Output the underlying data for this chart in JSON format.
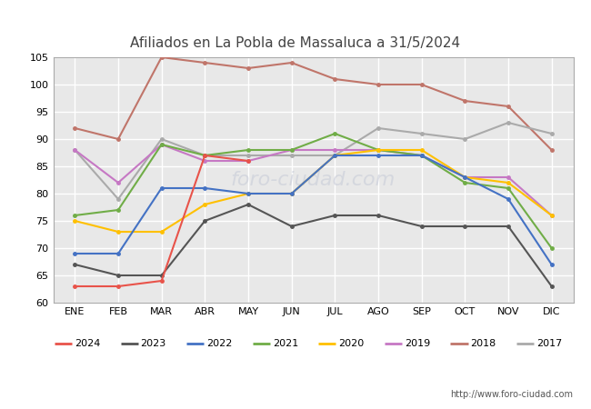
{
  "title": "Afiliados en La Pobla de Massaluca a 31/5/2024",
  "months": [
    "ENE",
    "FEB",
    "MAR",
    "ABR",
    "MAY",
    "JUN",
    "JUL",
    "AGO",
    "SEP",
    "OCT",
    "NOV",
    "DIC"
  ],
  "series": {
    "2024": {
      "color": "#e8534a",
      "data": [
        63,
        63,
        64,
        87,
        86,
        null,
        null,
        null,
        null,
        null,
        null,
        null
      ]
    },
    "2023": {
      "color": "#555555",
      "data": [
        67,
        65,
        65,
        75,
        78,
        74,
        76,
        76,
        74,
        74,
        74,
        63
      ]
    },
    "2022": {
      "color": "#4472c4",
      "data": [
        69,
        69,
        81,
        81,
        80,
        80,
        87,
        87,
        87,
        83,
        79,
        67
      ]
    },
    "2021": {
      "color": "#70ad47",
      "data": [
        76,
        77,
        89,
        87,
        88,
        88,
        91,
        88,
        87,
        82,
        81,
        70
      ]
    },
    "2020": {
      "color": "#ffc000",
      "data": [
        75,
        73,
        73,
        78,
        80,
        80,
        87,
        88,
        88,
        83,
        82,
        76
      ]
    },
    "2019": {
      "color": "#c678c4",
      "data": [
        88,
        82,
        89,
        86,
        86,
        88,
        88,
        88,
        87,
        83,
        83,
        76
      ]
    },
    "2018": {
      "color": "#c0756a",
      "data": [
        92,
        90,
        105,
        104,
        103,
        104,
        101,
        100,
        100,
        97,
        96,
        88
      ]
    },
    "2017": {
      "color": "#aaaaaa",
      "data": [
        88,
        79,
        90,
        87,
        87,
        87,
        87,
        92,
        91,
        90,
        93,
        91
      ]
    }
  },
  "ylim": [
    60,
    105
  ],
  "yticks": [
    60,
    65,
    70,
    75,
    80,
    85,
    90,
    95,
    100,
    105
  ],
  "url": "http://www.foro-ciudad.com",
  "plot_bg": "#e8e8e8",
  "fig_bg": "#ffffff",
  "grid_color": "#ffffff",
  "title_color": "#444444",
  "watermark_color": "#c8ccd8",
  "watermark_alpha": 0.6,
  "legend_years": [
    "2024",
    "2023",
    "2022",
    "2021",
    "2020",
    "2019",
    "2018",
    "2017"
  ],
  "series_order": [
    "2018",
    "2017",
    "2019",
    "2021",
    "2020",
    "2022",
    "2023",
    "2024"
  ]
}
